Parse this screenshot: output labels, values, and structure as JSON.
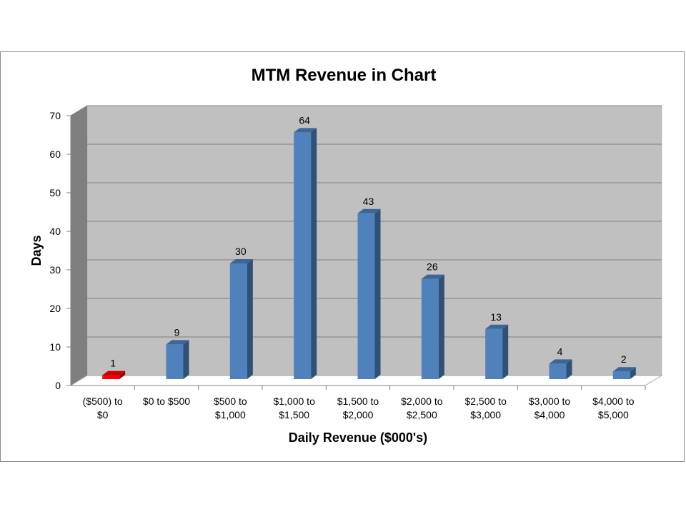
{
  "chart_data": {
    "type": "bar",
    "title": "MTM Revenue in Chart",
    "xlabel": "Daily Revenue ($000's)",
    "ylabel": "Days",
    "ylim": [
      0,
      70
    ],
    "yticks": [
      0,
      10,
      20,
      30,
      40,
      50,
      60,
      70
    ],
    "grid": true,
    "legend": "none",
    "categories": [
      [
        "($500) to",
        "$0"
      ],
      [
        "$0 to $500"
      ],
      [
        "$500 to",
        "$1,000"
      ],
      [
        "$1,000 to",
        "$1,500"
      ],
      [
        "$1,500 to",
        "$2,000"
      ],
      [
        "$2,000 to",
        "$2,500"
      ],
      [
        "$2,500 to",
        "$3,000"
      ],
      [
        "$3,000 to",
        "$4,000"
      ],
      [
        "$4,000 to",
        "$5,000"
      ]
    ],
    "values": [
      1,
      9,
      30,
      64,
      43,
      26,
      13,
      4,
      2
    ],
    "bar_colors": [
      "#ff0000",
      "#4f81bd",
      "#4f81bd",
      "#4f81bd",
      "#4f81bd",
      "#4f81bd",
      "#4f81bd",
      "#4f81bd",
      "#4f81bd"
    ],
    "colors": {
      "bar": "#4f81bd",
      "negative_bar": "#ff0000",
      "plot_background": "#c0c0c0",
      "side_wall": "#7f7f7f",
      "floor": "#ffffff",
      "gridline": "#808080"
    }
  }
}
